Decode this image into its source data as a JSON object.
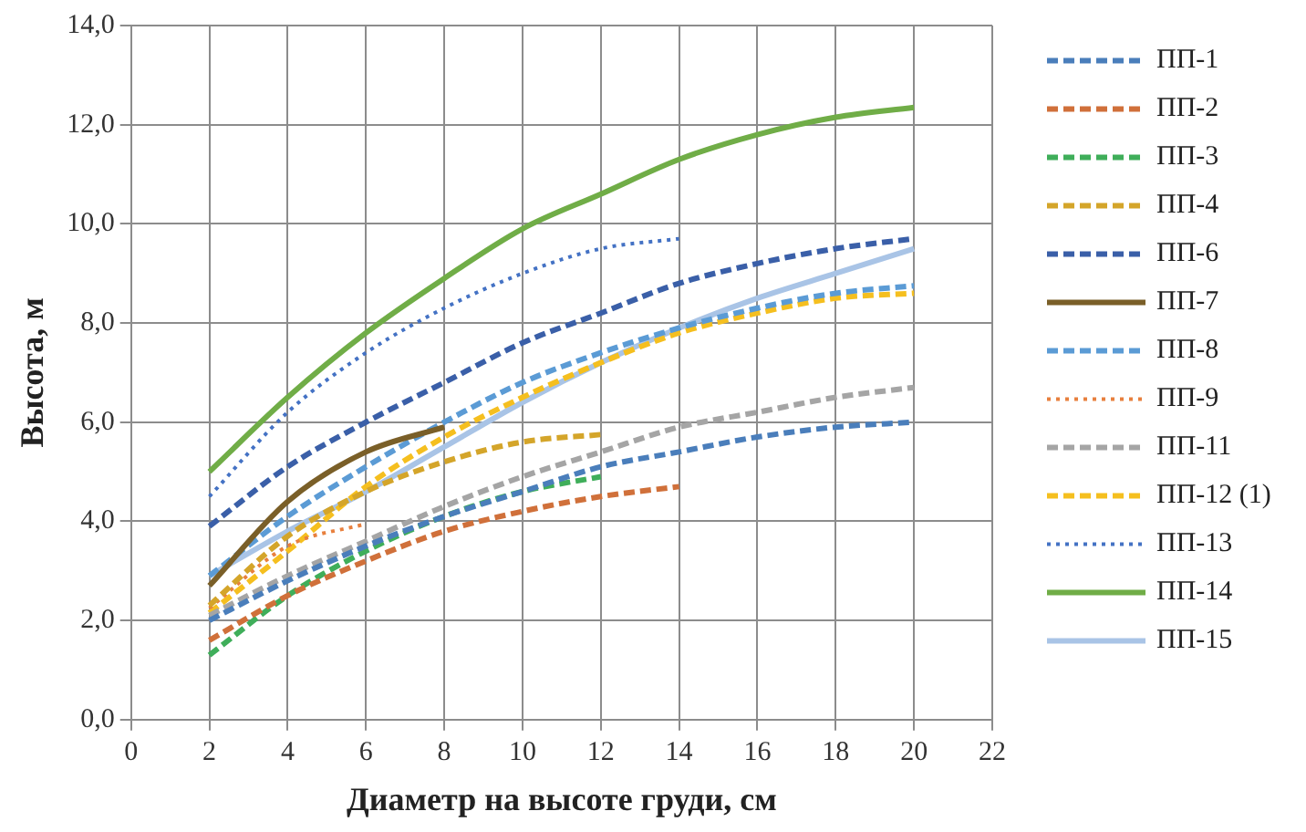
{
  "chart_data": {
    "type": "line",
    "xlabel": "Диаметр на высоте груди, см",
    "ylabel": "Высота, м",
    "xlim": [
      0,
      22
    ],
    "xticks": [
      0,
      2,
      4,
      6,
      8,
      10,
      12,
      14,
      16,
      18,
      20,
      22
    ],
    "ylim": [
      0,
      14
    ],
    "yticks": [
      {
        "value": 0,
        "label": "0,0"
      },
      {
        "value": 2,
        "label": "2,0"
      },
      {
        "value": 4,
        "label": "4,0"
      },
      {
        "value": 6,
        "label": "6,0"
      },
      {
        "value": 8,
        "label": "8,0"
      },
      {
        "value": 10,
        "label": "10,0"
      },
      {
        "value": 12,
        "label": "12,0"
      },
      {
        "value": 14,
        "label": "14,0"
      }
    ],
    "grid": true,
    "legend": "right",
    "marker": "none",
    "series": [
      {
        "name": "ПП-1",
        "color": "#4a7ebb",
        "line_style": "dashed",
        "x": [
          2,
          4,
          6,
          8,
          10,
          12,
          14,
          16,
          18,
          20
        ],
        "values": [
          2.0,
          2.8,
          3.5,
          4.1,
          4.6,
          5.1,
          5.4,
          5.7,
          5.9,
          6.0
        ]
      },
      {
        "name": "ПП-2",
        "color": "#d0703a",
        "line_style": "dashed",
        "x": [
          2,
          4,
          6,
          8,
          10,
          12,
          14
        ],
        "values": [
          1.6,
          2.5,
          3.2,
          3.8,
          4.2,
          4.5,
          4.7
        ]
      },
      {
        "name": "ПП-3",
        "color": "#3fae5a",
        "line_style": "dashed",
        "x": [
          2,
          4,
          6,
          8,
          10,
          12
        ],
        "values": [
          1.3,
          2.5,
          3.4,
          4.1,
          4.6,
          4.9
        ]
      },
      {
        "name": "ПП-4",
        "color": "#d4a52a",
        "line_style": "dashed",
        "x": [
          2,
          4,
          6,
          8,
          10,
          12
        ],
        "values": [
          2.3,
          3.7,
          4.6,
          5.2,
          5.6,
          5.75
        ]
      },
      {
        "name": "ПП-6",
        "color": "#3a5fa8",
        "line_style": "dashed",
        "x": [
          2,
          4,
          6,
          8,
          10,
          12,
          14,
          16,
          18,
          20
        ],
        "values": [
          3.9,
          5.1,
          6.0,
          6.8,
          7.6,
          8.2,
          8.8,
          9.2,
          9.5,
          9.7
        ]
      },
      {
        "name": "ПП-7",
        "color": "#7a5f28",
        "line_style": "solid",
        "x": [
          2,
          4,
          6,
          8
        ],
        "values": [
          2.7,
          4.4,
          5.4,
          5.9
        ]
      },
      {
        "name": "ПП-8",
        "color": "#5b9bd5",
        "line_style": "dashed",
        "x": [
          2,
          4,
          6,
          8,
          10,
          12,
          14,
          16,
          18,
          20
        ],
        "values": [
          2.9,
          4.1,
          5.1,
          6.0,
          6.8,
          7.4,
          7.9,
          8.3,
          8.6,
          8.75
        ]
      },
      {
        "name": "ПП-9",
        "color": "#e8803e",
        "line_style": "dotted",
        "x": [
          2,
          4,
          6
        ],
        "values": [
          2.25,
          3.5,
          3.95
        ]
      },
      {
        "name": "ПП-11",
        "color": "#a5a5a5",
        "line_style": "dashed",
        "x": [
          2,
          4,
          6,
          8,
          10,
          12,
          14,
          16,
          18,
          20
        ],
        "values": [
          2.1,
          2.9,
          3.6,
          4.3,
          4.9,
          5.4,
          5.9,
          6.2,
          6.5,
          6.7
        ]
      },
      {
        "name": "ПП-12 (1)",
        "color": "#f5bf1f",
        "line_style": "dashed",
        "x": [
          2,
          4,
          6,
          8,
          10,
          12,
          14,
          16,
          18,
          20
        ],
        "values": [
          2.15,
          3.4,
          4.7,
          5.7,
          6.5,
          7.2,
          7.8,
          8.2,
          8.5,
          8.6
        ]
      },
      {
        "name": "ПП-13",
        "color": "#4472c4",
        "line_style": "dotted",
        "x": [
          2,
          4,
          6,
          8,
          10,
          12,
          14
        ],
        "values": [
          4.5,
          6.2,
          7.4,
          8.3,
          9.0,
          9.5,
          9.7
        ]
      },
      {
        "name": "ПП-14",
        "color": "#70ad47",
        "line_style": "solid",
        "x": [
          2,
          4,
          6,
          8,
          10,
          12,
          14,
          16,
          18,
          20
        ],
        "values": [
          5.0,
          6.5,
          7.8,
          8.9,
          9.9,
          10.6,
          11.3,
          11.8,
          12.15,
          12.35
        ]
      },
      {
        "name": "ПП-15",
        "color": "#a9c4e6",
        "line_style": "solid",
        "x": [
          2,
          4,
          6,
          8,
          10,
          12,
          14,
          16,
          18,
          20
        ],
        "values": [
          2.9,
          3.8,
          4.6,
          5.5,
          6.4,
          7.2,
          7.9,
          8.5,
          9.0,
          9.5
        ]
      }
    ]
  }
}
